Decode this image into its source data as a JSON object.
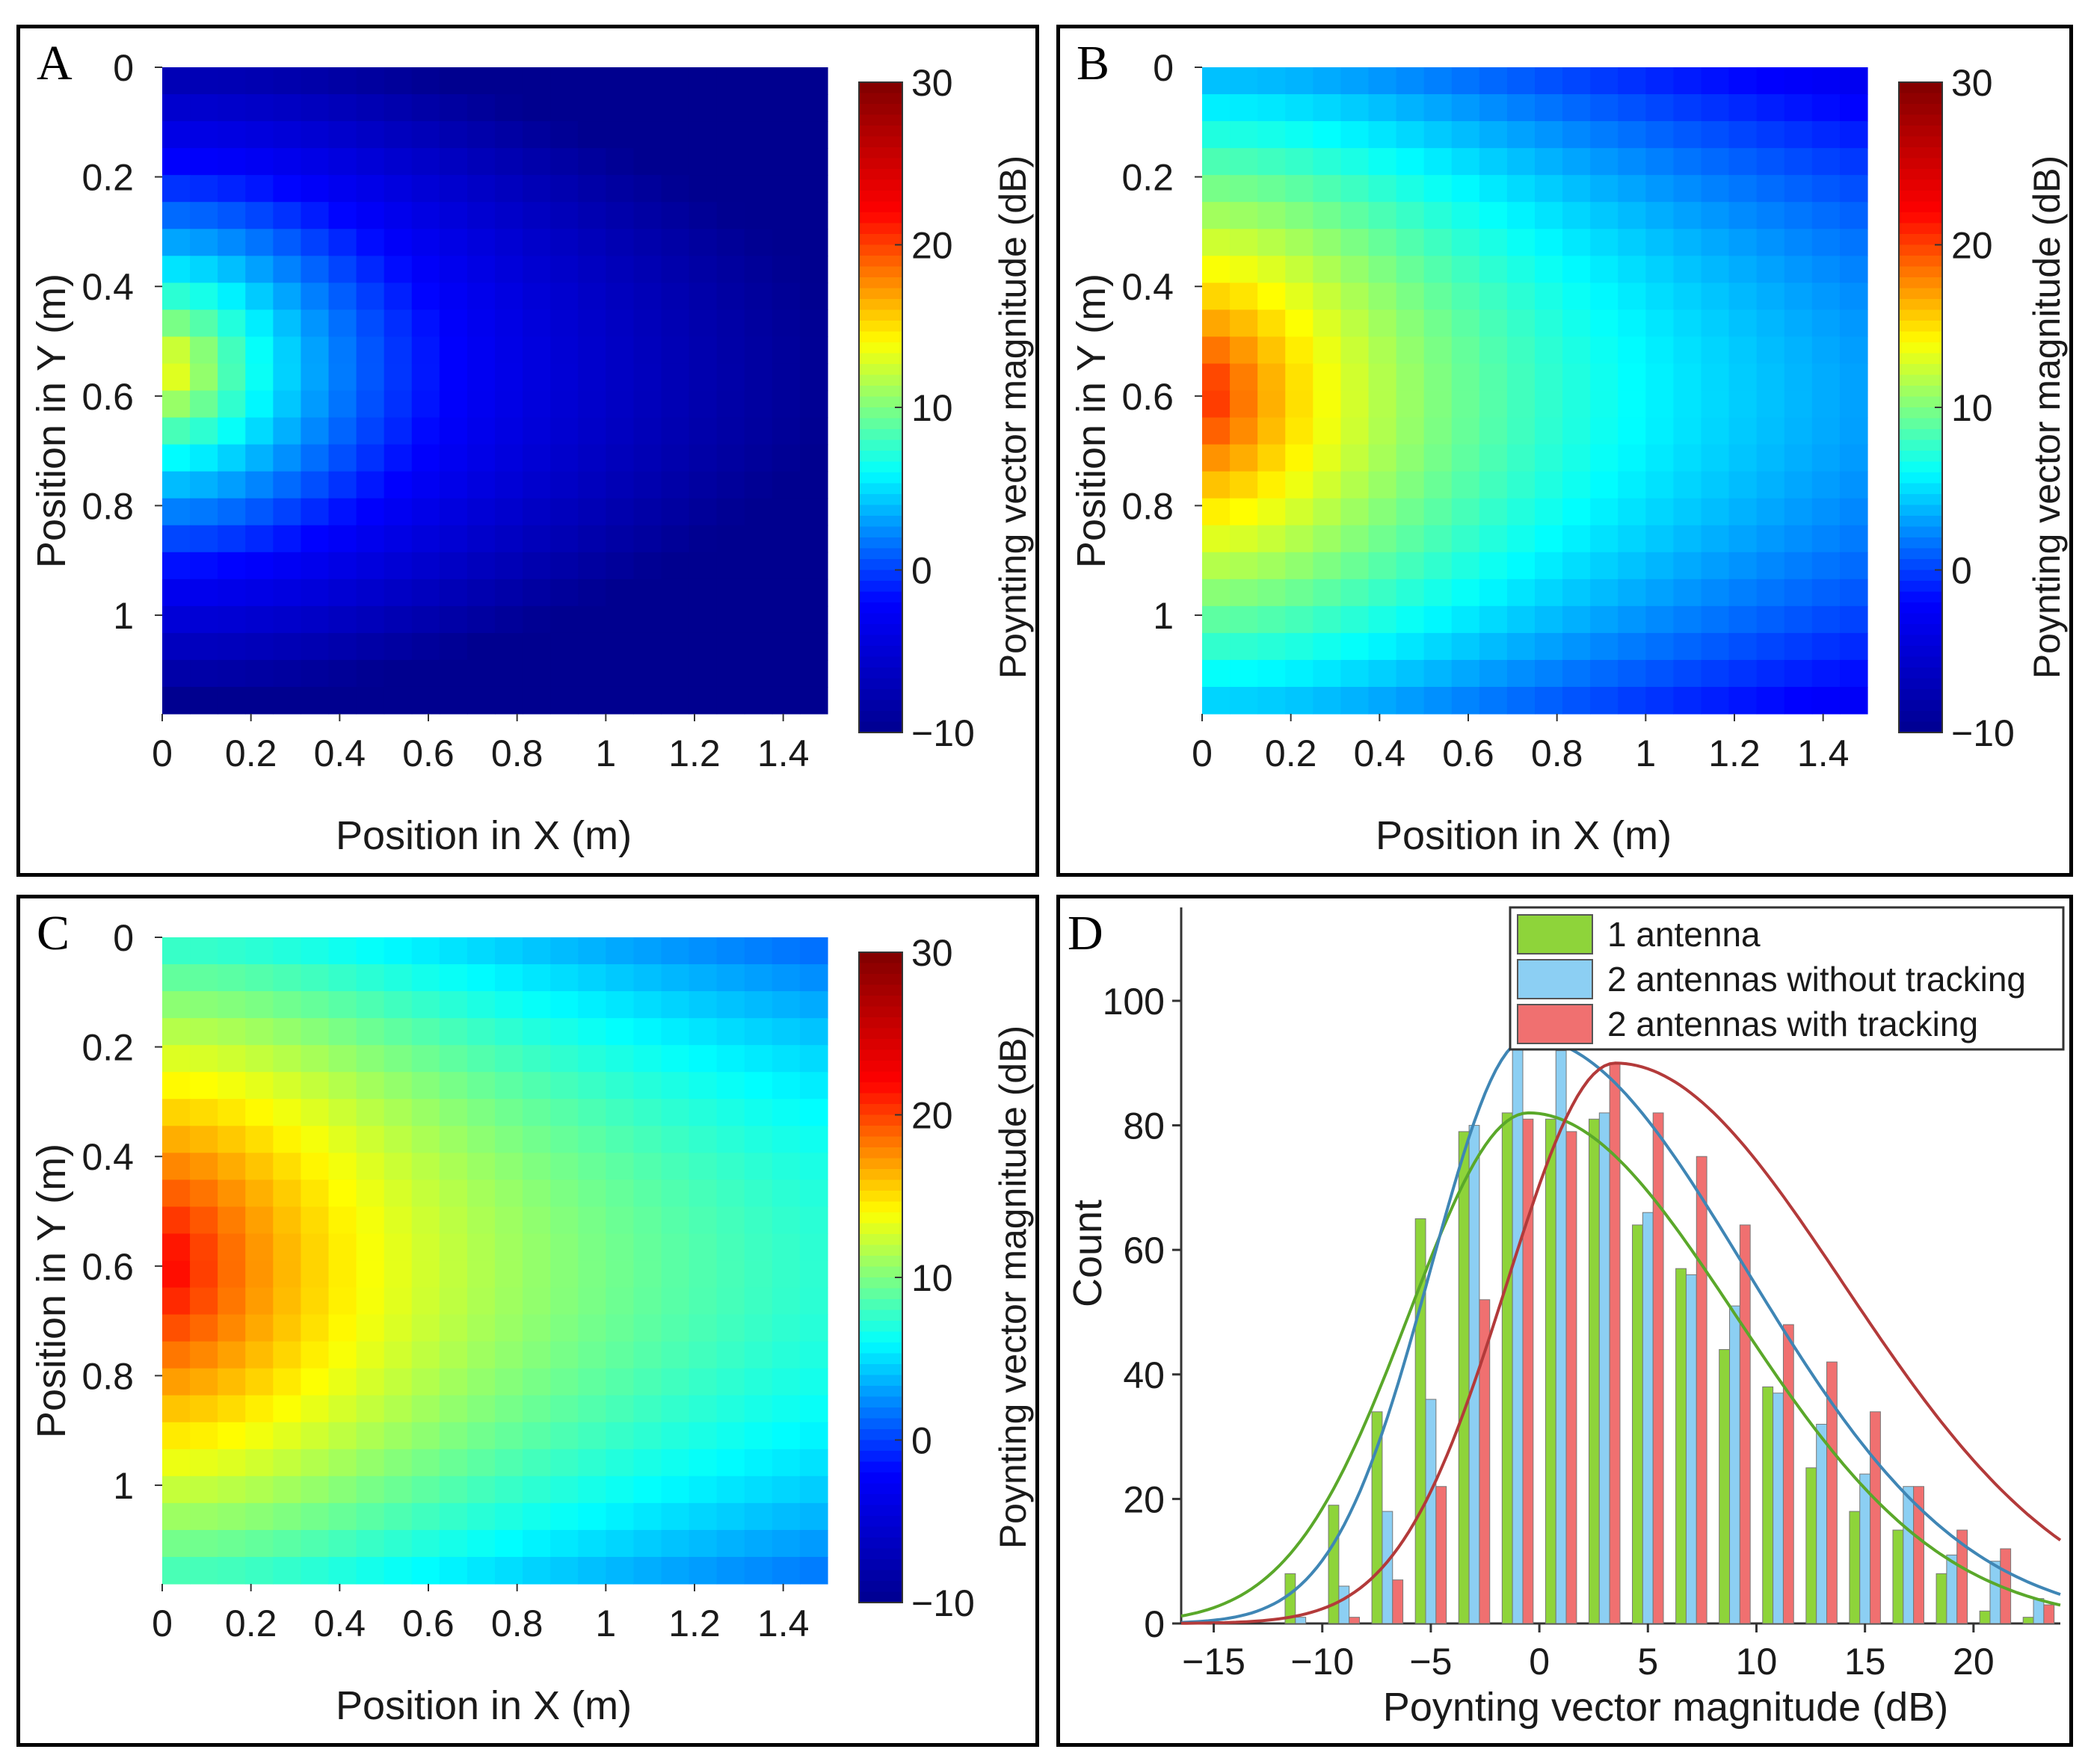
{
  "colors": {
    "jet": [
      "#00008f",
      "#0000ff",
      "#00ffff",
      "#ffff00",
      "#ff0000",
      "#800000"
    ],
    "series_green": "#8ed43a",
    "series_blue": "#8ccff3",
    "series_red": "#f07070",
    "curve_green": "#5aa82a",
    "curve_blue": "#3f86b5",
    "curve_red": "#b33a3a"
  },
  "chart_data": [
    {
      "id": "A",
      "type": "heatmap",
      "panel_label": "A",
      "xlabel": "Position in X (m)",
      "ylabel": "Position in Y (m)",
      "colorbar_label": "Poynting vector magnitude (dB)",
      "xlim": [
        0,
        1.5
      ],
      "ylim": [
        0,
        1.18
      ],
      "clim": [
        -10,
        30
      ],
      "grid_cols": 24,
      "grid_rows": 24,
      "x_ticks": [
        0,
        0.2,
        0.4,
        0.6,
        0.8,
        1,
        1.2,
        1.4
      ],
      "x_tick_labels": [
        "0",
        "0.2",
        "0.4",
        "0.6",
        "0.8",
        "1",
        "1.2",
        "1.4"
      ],
      "y_ticks": [
        0,
        0.2,
        0.4,
        0.6,
        0.8,
        1
      ],
      "y_tick_labels": [
        "0",
        "0.2",
        "0.4",
        "0.6",
        "0.8",
        "1"
      ],
      "cb_ticks": [
        30,
        20,
        10,
        0,
        -10
      ],
      "cb_tick_labels": [
        "30",
        "20",
        "10",
        "0",
        "−10"
      ],
      "field": {
        "source_y": 0.55,
        "peak": 17,
        "decay": 16,
        "y_spread": 0.45,
        "floor": -10
      }
    },
    {
      "id": "B",
      "type": "heatmap",
      "panel_label": "B",
      "xlabel": "Position in X (m)",
      "ylabel": "Position in Y (m)",
      "colorbar_label": "Poynting vector magnitude (dB)",
      "xlim": [
        0,
        1.5
      ],
      "ylim": [
        0,
        1.18
      ],
      "clim": [
        -10,
        30
      ],
      "grid_cols": 24,
      "grid_rows": 24,
      "x_ticks": [
        0,
        0.2,
        0.4,
        0.6,
        0.8,
        1,
        1.2,
        1.4
      ],
      "x_tick_labels": [
        "0",
        "0.2",
        "0.4",
        "0.6",
        "0.8",
        "1",
        "1.2",
        "1.4"
      ],
      "y_ticks": [
        0,
        0.2,
        0.4,
        0.6,
        0.8,
        1
      ],
      "y_tick_labels": [
        "0",
        "0.2",
        "0.4",
        "0.6",
        "0.8",
        "1"
      ],
      "cb_ticks": [
        30,
        20,
        10,
        0,
        -10
      ],
      "cb_tick_labels": [
        "30",
        "20",
        "10",
        "0",
        "−10"
      ],
      "field": {
        "source_y": 0.6,
        "peak": 23,
        "decay": 12,
        "y_spread": 0.6,
        "floor": -7
      }
    },
    {
      "id": "C",
      "type": "heatmap",
      "panel_label": "C",
      "xlabel": "Position in X (m)",
      "ylabel": "Position in Y (m)",
      "colorbar_label": "Poynting vector magnitude (dB)",
      "xlim": [
        0,
        1.5
      ],
      "ylim": [
        0,
        1.18
      ],
      "clim": [
        -10,
        30
      ],
      "grid_cols": 24,
      "grid_rows": 24,
      "x_ticks": [
        0,
        0.2,
        0.4,
        0.6,
        0.8,
        1,
        1.2,
        1.4
      ],
      "x_tick_labels": [
        "0",
        "0.2",
        "0.4",
        "0.6",
        "0.8",
        "1",
        "1.2",
        "1.4"
      ],
      "y_ticks": [
        0,
        0.2,
        0.4,
        0.6,
        0.8,
        1
      ],
      "y_tick_labels": [
        "0",
        "0.2",
        "0.4",
        "0.6",
        "0.8",
        "1"
      ],
      "cb_ticks": [
        30,
        20,
        10,
        0,
        -10
      ],
      "cb_tick_labels": [
        "30",
        "20",
        "10",
        "0",
        "−10"
      ],
      "field": {
        "source_y": 0.6,
        "peak": 24,
        "decay": 10,
        "y_spread": 0.65,
        "floor": -4
      }
    },
    {
      "id": "D",
      "type": "bar",
      "panel_label": "D",
      "xlabel": "Poynting vector magnitude (dB)",
      "ylabel": "Count",
      "xlim": [
        -16.5,
        24
      ],
      "ylim": [
        0,
        115
      ],
      "x_ticks": [
        -15,
        -10,
        -5,
        0,
        5,
        10,
        15,
        20
      ],
      "x_tick_labels": [
        "−15",
        "−10",
        "−5",
        "0",
        "5",
        "10",
        "15",
        "20"
      ],
      "y_ticks": [
        0,
        20,
        40,
        60,
        80,
        100
      ],
      "y_tick_labels": [
        "0",
        "20",
        "40",
        "60",
        "80",
        "100"
      ],
      "bin_centers": [
        -11,
        -9,
        -7,
        -5,
        -3,
        -1,
        1,
        3,
        5,
        7,
        9,
        11,
        13,
        15,
        17,
        19,
        21,
        23
      ],
      "bin_width": 2,
      "legend_position": "top-right",
      "series": [
        {
          "name": "1 antenna",
          "color_key": "series_green",
          "values": [
            8,
            19,
            34,
            65,
            79,
            82,
            81,
            81,
            64,
            57,
            44,
            38,
            25,
            18,
            15,
            8,
            2,
            1
          ],
          "fit": {
            "peak": 82,
            "mode": -0.5,
            "sigma_left": 5.5,
            "sigma_right": 9.5
          }
        },
        {
          "name": "2 antennas without tracking",
          "color_key": "series_blue",
          "values": [
            1,
            6,
            18,
            36,
            80,
            94,
            92,
            82,
            66,
            56,
            51,
            37,
            32,
            24,
            22,
            11,
            10,
            4
          ],
          "fit": {
            "peak": 94,
            "mode": -0.5,
            "sigma_left": 4.5,
            "sigma_right": 10
          }
        },
        {
          "name": "2 antennas with tracking",
          "color_key": "series_red",
          "values": [
            0,
            1,
            7,
            22,
            52,
            81,
            79,
            90,
            82,
            75,
            64,
            48,
            42,
            34,
            22,
            15,
            12,
            3
          ],
          "fit": {
            "peak": 90,
            "mode": 3.5,
            "sigma_left": 5,
            "sigma_right": 10.5
          }
        }
      ]
    }
  ]
}
